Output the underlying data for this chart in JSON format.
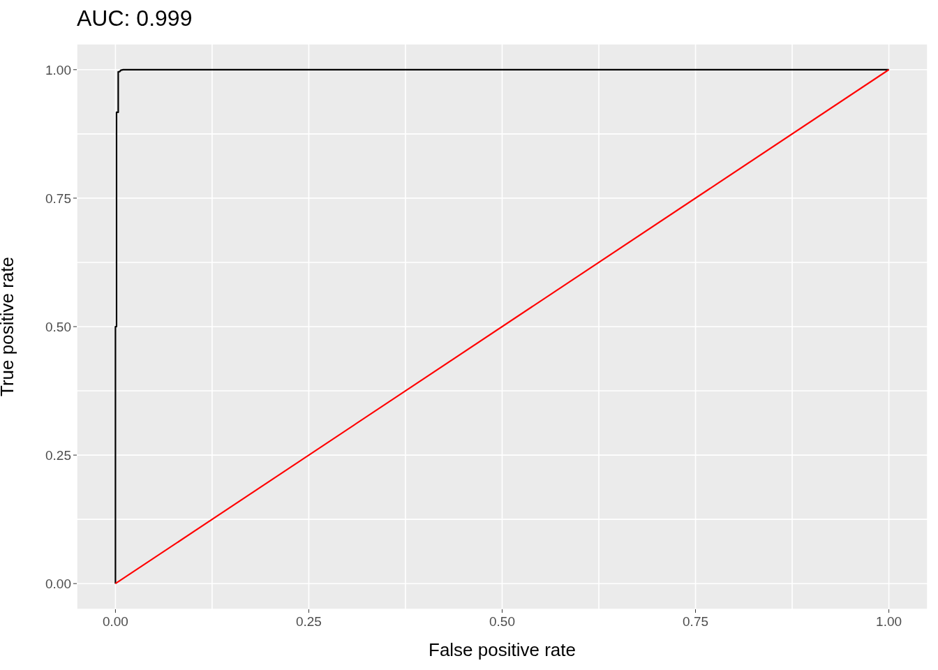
{
  "chart_data": {
    "type": "line",
    "title": "AUC: 0.999",
    "xlabel": "False positive rate",
    "ylabel": "True positive rate",
    "series": [
      {
        "color": "#000000",
        "x": [
          0,
          0,
          0.0014,
          0.0014,
          0.0036,
          0.0036,
          0.0054,
          0.007,
          0.01,
          1
        ],
        "values": [
          0,
          0.5,
          0.5,
          0.917,
          0.917,
          0.996,
          0.996,
          0.999,
          1,
          1
        ]
      },
      {
        "color": "#ff0000",
        "x": [
          0,
          1
        ],
        "values": [
          0,
          1
        ]
      }
    ],
    "xlim": [
      -0.05,
      1.05
    ],
    "ylim": [
      -0.05,
      1.05
    ],
    "xticks": [
      {
        "value": 0,
        "label": "0.00"
      },
      {
        "value": 0.125,
        "label": null
      },
      {
        "value": 0.25,
        "label": "0.25"
      },
      {
        "value": 0.375,
        "label": null
      },
      {
        "value": 0.5,
        "label": "0.50"
      },
      {
        "value": 0.625,
        "label": null
      },
      {
        "value": 0.75,
        "label": "0.75"
      },
      {
        "value": 0.875,
        "label": null
      },
      {
        "value": 1,
        "label": "1.00"
      }
    ],
    "yticks": [
      {
        "value": 0,
        "label": "0.00"
      },
      {
        "value": 0.125,
        "label": null
      },
      {
        "value": 0.25,
        "label": "0.25"
      },
      {
        "value": 0.375,
        "label": null
      },
      {
        "value": 0.5,
        "label": "0.50"
      },
      {
        "value": 0.625,
        "label": null
      },
      {
        "value": 0.75,
        "label": "0.75"
      },
      {
        "value": 0.875,
        "label": null
      },
      {
        "value": 1,
        "label": "1.00"
      }
    ],
    "grid": true,
    "marker": "none",
    "line_style": "solid"
  }
}
